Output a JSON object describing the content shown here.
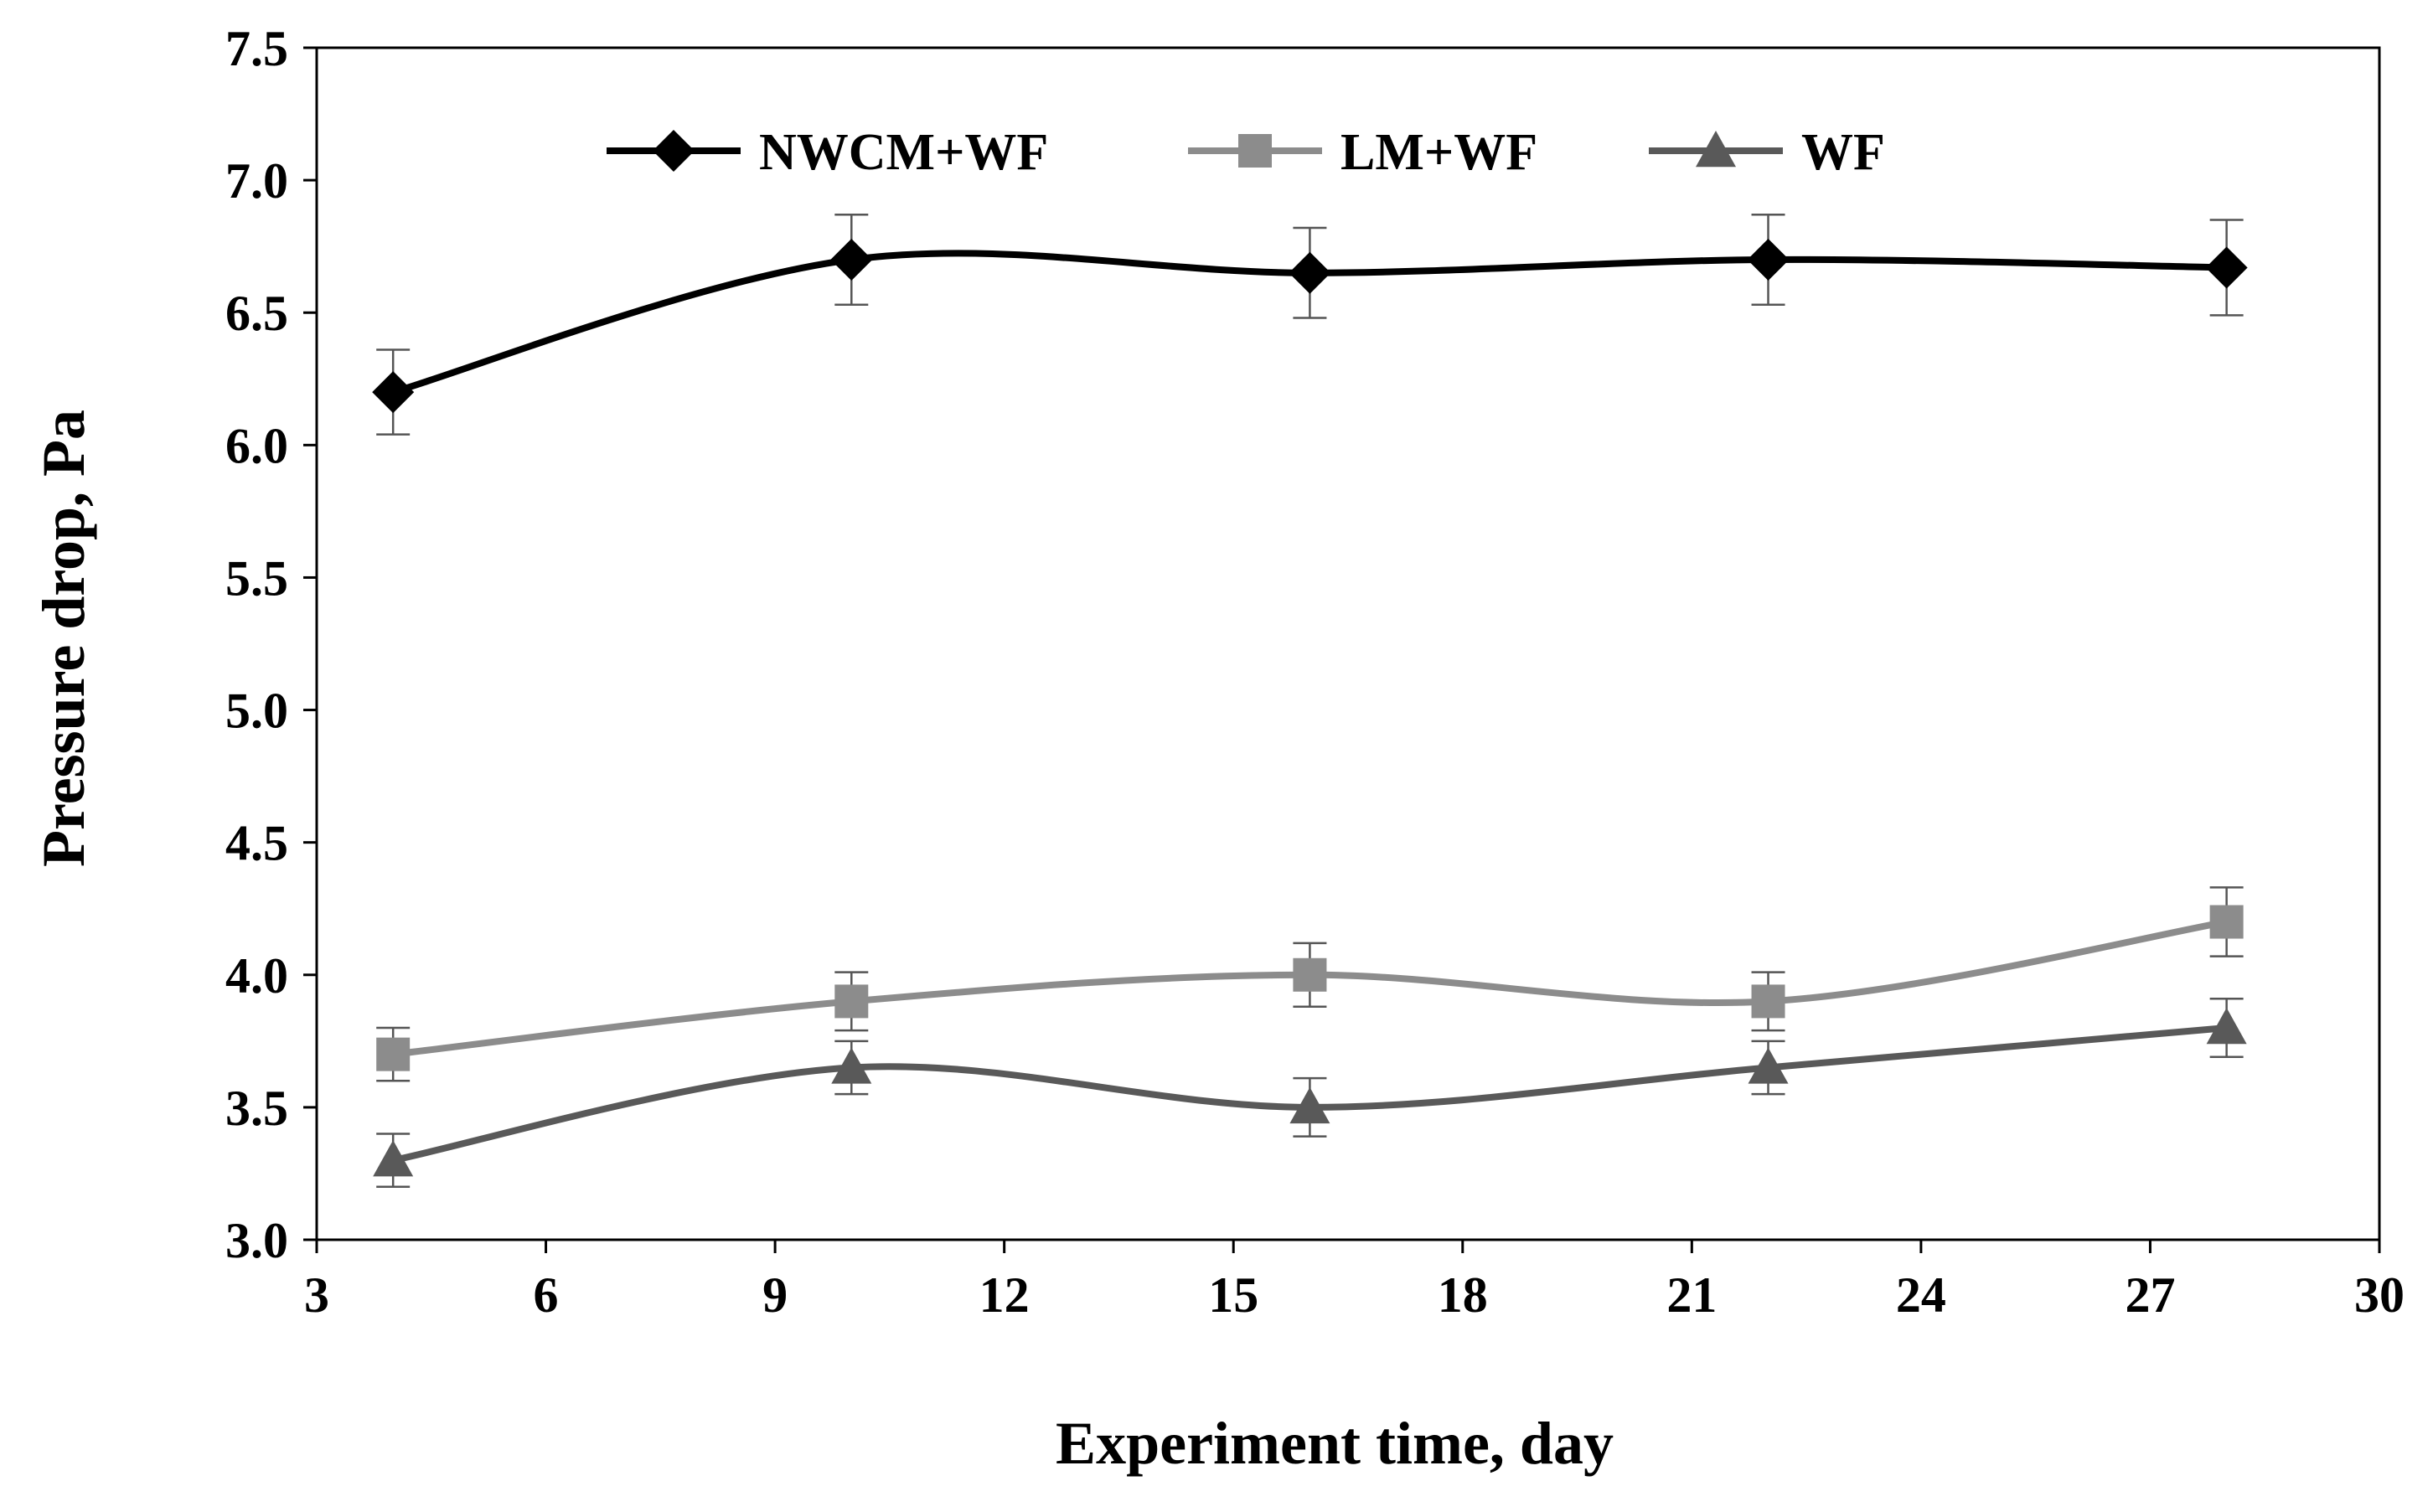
{
  "chart_data": {
    "type": "line",
    "title": "",
    "xlabel": "Experiment  time, day",
    "ylabel": "Pressure drop, Pa",
    "xlim": [
      3,
      30
    ],
    "ylim": [
      3.0,
      7.5
    ],
    "x_ticks": [
      3,
      6,
      9,
      12,
      15,
      18,
      21,
      24,
      27,
      30
    ],
    "y_ticks": [
      3.0,
      3.5,
      4.0,
      4.5,
      5.0,
      5.5,
      6.0,
      6.5,
      7.0,
      7.5
    ],
    "x_tick_labels": [
      "3",
      "6",
      "9",
      "12",
      "15",
      "18",
      "21",
      "24",
      "27",
      "30"
    ],
    "y_tick_labels": [
      "3.0",
      "3.5",
      "4.0",
      "4.5",
      "5.0",
      "5.5",
      "6.0",
      "6.5",
      "7.0",
      "7.5"
    ],
    "grid": false,
    "legend_position": "top",
    "series": [
      {
        "name": "NWCM+WF",
        "marker": "diamond",
        "color": "#000000",
        "x": [
          4,
          10,
          16,
          22,
          28
        ],
        "y": [
          6.2,
          6.7,
          6.65,
          6.7,
          6.67
        ],
        "error": [
          0.16,
          0.17,
          0.17,
          0.17,
          0.18
        ]
      },
      {
        "name": "LM+WF",
        "marker": "square",
        "color": "#8c8c8c",
        "x": [
          4,
          10,
          16,
          22,
          28
        ],
        "y": [
          3.7,
          3.9,
          4.0,
          3.9,
          4.2
        ],
        "error": [
          0.1,
          0.11,
          0.12,
          0.11,
          0.13
        ]
      },
      {
        "name": "WF",
        "marker": "triangle",
        "color": "#595959",
        "x": [
          4,
          10,
          16,
          22,
          28
        ],
        "y": [
          3.3,
          3.65,
          3.5,
          3.65,
          3.8
        ],
        "error": [
          0.1,
          0.1,
          0.11,
          0.1,
          0.11
        ]
      }
    ]
  }
}
